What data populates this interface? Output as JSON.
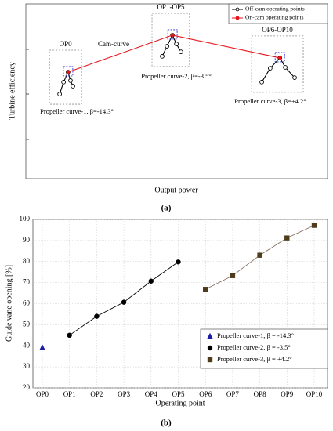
{
  "chart_data": [
    {
      "type": "line",
      "caption": "(a)",
      "xlabel": "Output power",
      "ylabel": "Turbine efficiency",
      "xlim": [
        0,
        100
      ],
      "ylim": [
        0,
        100
      ],
      "legend": "upper right",
      "cam_label": "Cam-curve",
      "groups": [
        {
          "label": "OP0",
          "curve_label": "Propeller curve-1, β=-14.3°"
        },
        {
          "label": "OP1-OP5",
          "curve_label": "Propeller curve-2, β=-3.5°"
        },
        {
          "label": "OP6-OP10",
          "curve_label": "Propeller curve-3, β=+4.2°"
        }
      ],
      "series": [
        {
          "name": "Off-cam operating points",
          "color": "#000000",
          "marker": "open-circle",
          "x": [
            11.2,
            12.5,
            14.0,
            14.8,
            15.6,
            null,
            45.2,
            46.8,
            48.6,
            49.9,
            51.4,
            null,
            78.2,
            81.0,
            84.2,
            86.0,
            89.1
          ],
          "values": [
            48.4,
            55.2,
            61.0,
            56.1,
            52.9,
            null,
            70.0,
            75.8,
            82.1,
            77.1,
            72.6,
            null,
            55.2,
            63.2,
            69.1,
            63.7,
            57.8
          ]
        },
        {
          "name": "On-cam operating points",
          "color": "#e8141b",
          "marker": "circle",
          "x": [
            14.0,
            48.6,
            84.2
          ],
          "values": [
            61.0,
            82.1,
            69.1
          ]
        }
      ]
    },
    {
      "type": "line",
      "caption": "(b)",
      "xlabel": "Operating point",
      "ylabel": "Guide vane opening [%]",
      "categories": [
        "OP0",
        "OP1",
        "OP2",
        "OP3",
        "OP4",
        "OP5",
        "OP6",
        "OP7",
        "OP8",
        "OP9",
        "OP10"
      ],
      "ylim": [
        20,
        100
      ],
      "yticks": [
        20,
        30,
        40,
        50,
        60,
        70,
        80,
        90,
        100
      ],
      "grid": true,
      "legend": "lower right",
      "series": [
        {
          "name": "Propeller curve-1, β = -14.3°",
          "color": "#1c1ca8",
          "line_color": "#1c1ca8",
          "marker": "triangle",
          "values": [
            39.2,
            null,
            null,
            null,
            null,
            null,
            null,
            null,
            null,
            null,
            null
          ]
        },
        {
          "name": "Propeller curve-2, β = -3.5°",
          "color": "#000000",
          "line_color": "#000000",
          "marker": "circle",
          "values": [
            null,
            45.0,
            54.0,
            60.7,
            70.7,
            79.8,
            null,
            null,
            null,
            null,
            null
          ]
        },
        {
          "name": "Propeller curve-3, β = +4.2°",
          "color": "#4d3b1a",
          "line_color": "#8a6e63",
          "marker": "square",
          "values": [
            null,
            null,
            null,
            null,
            null,
            null,
            66.8,
            73.3,
            83.0,
            91.2,
            97.2
          ]
        }
      ]
    }
  ]
}
